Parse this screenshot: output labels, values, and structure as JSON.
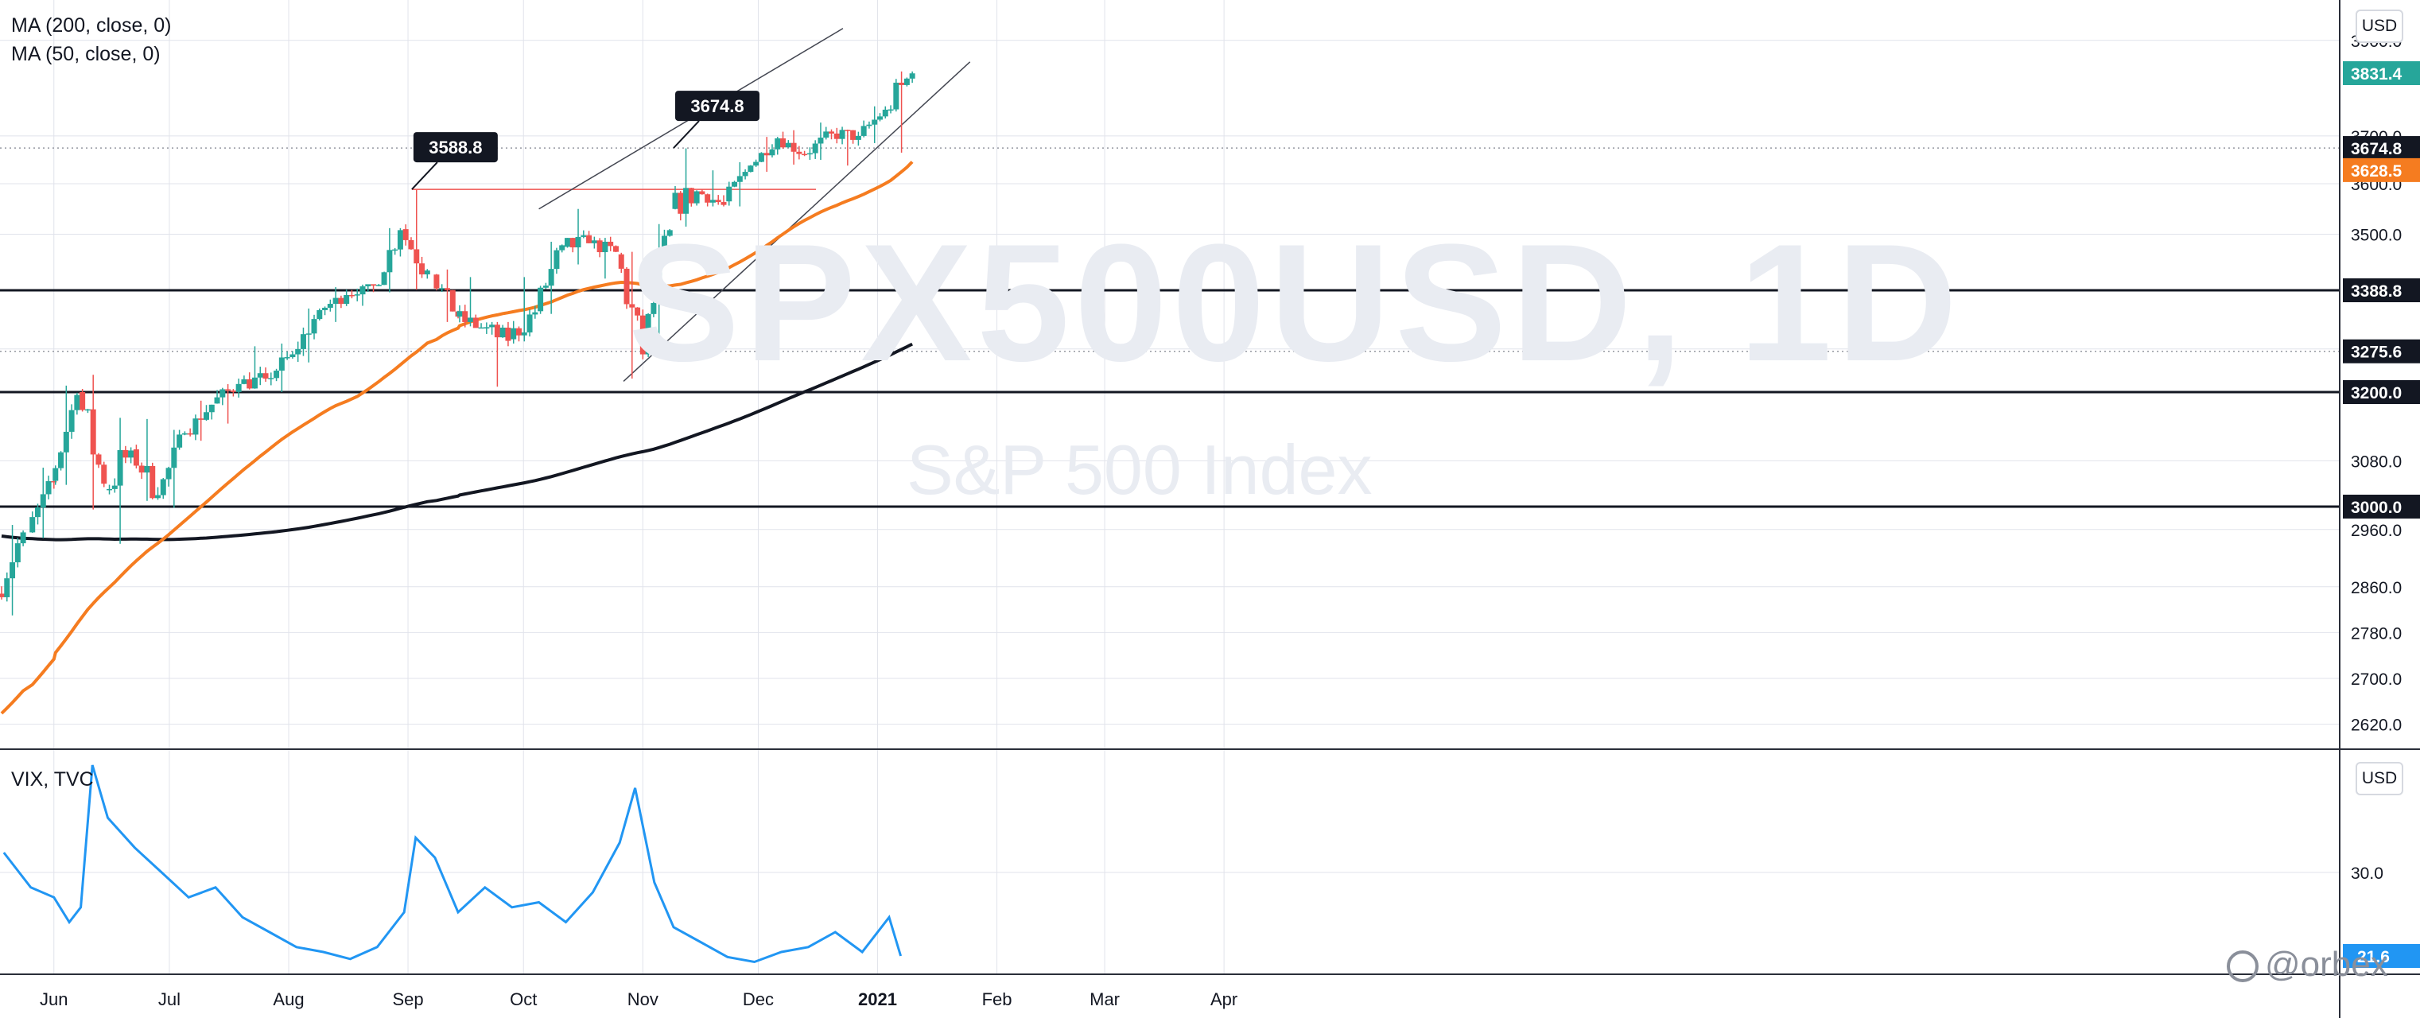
{
  "indicators": {
    "ma200_label": "MA (200, close, 0)",
    "ma50_label": "MA (50, close, 0)",
    "vix_label": "VIX, TVC"
  },
  "watermark": {
    "symbol": "SPX500USD, 1D",
    "name": "S&P 500 Index"
  },
  "currency": "USD",
  "brand": "@orbex",
  "colors": {
    "up": "#26a69a",
    "down": "#ef5350",
    "ma50": "#f57c20",
    "ma200": "#131722",
    "vix": "#2196f3",
    "grid": "#e1e3eb",
    "text": "#131722"
  },
  "chart_data": [
    {
      "type": "candlestick",
      "title": "",
      "x_ticks": [
        "Jun",
        "Jul",
        "Aug",
        "Sep",
        "Oct",
        "Nov",
        "Dec",
        "2021",
        "Feb",
        "Mar",
        "Apr"
      ],
      "y_ticks": [
        "2620.0",
        "2700.0",
        "2780.0",
        "2860.0",
        "2960.0",
        "3080.0",
        "3200.0",
        "3280.0",
        "3388.8",
        "3500.0",
        "3600.0",
        "3700.0",
        "3900.0"
      ],
      "ylim": [
        2620,
        3930
      ],
      "price_labels": [
        {
          "text": "3831.4",
          "value": 3831.4,
          "color": "#26a69a"
        },
        {
          "text": "3674.8",
          "value": 3674.8,
          "color": "#131722"
        },
        {
          "text": "3628.5",
          "value": 3628.5,
          "color": "#f57c20"
        },
        {
          "text": "3388.8",
          "value": 3388.8,
          "color": "#131722"
        },
        {
          "text": "3275.6",
          "value": 3275.6,
          "color": "#131722"
        },
        {
          "text": "3200.0",
          "value": 3200.0,
          "color": "#131722"
        },
        {
          "text": "3000.0",
          "value": 3000.0,
          "color": "#131722"
        }
      ],
      "horizontal_levels": [
        3388.8,
        3200.0,
        3000.0
      ],
      "callouts": [
        {
          "text": "3588.8",
          "date": "2020-09-02",
          "value": 3588.8
        },
        {
          "text": "3674.8",
          "date": "2020-11-09",
          "value": 3674.8
        }
      ],
      "resistance_line": {
        "value": 3588.8,
        "from": "2020-09-02",
        "to": "2020-12-16"
      },
      "channel": {
        "upper": [
          [
            "2020-10-05",
            3550
          ],
          [
            "2020-12-23",
            3925
          ]
        ],
        "lower": [
          [
            "2020-10-27",
            3220
          ],
          [
            "2021-01-25",
            3855
          ]
        ]
      },
      "series": [
        {
          "name": "SPX500USD",
          "ohlc_weekly": [
            [
              "2020-05-18",
              2848,
              2968,
              2810,
              2955
            ],
            [
              "2020-05-26",
              2955,
              3068,
              2945,
              3044
            ],
            [
              "2020-06-01",
              3045,
              3212,
              3038,
              3195
            ],
            [
              "2020-06-08",
              3200,
              3232,
              2995,
              3040
            ],
            [
              "2020-06-15",
              3030,
              3155,
              2935,
              3098
            ],
            [
              "2020-06-22",
              3100,
              3153,
              3010,
              3020
            ],
            [
              "2020-06-29",
              3020,
              3134,
              2998,
              3128
            ],
            [
              "2020-07-06",
              3128,
              3185,
              3115,
              3178
            ],
            [
              "2020-07-13",
              3180,
              3225,
              3145,
              3215
            ],
            [
              "2020-07-20",
              3215,
              3285,
              3195,
              3225
            ],
            [
              "2020-07-27",
              3225,
              3290,
              3200,
              3270
            ],
            [
              "2020-08-03",
              3270,
              3355,
              3255,
              3352
            ],
            [
              "2020-08-10",
              3352,
              3395,
              3330,
              3380
            ],
            [
              "2020-08-17",
              3380,
              3400,
              3360,
              3398
            ],
            [
              "2020-08-24",
              3398,
              3512,
              3385,
              3508
            ],
            [
              "2020-08-31",
              3510,
              3588,
              3390,
              3428
            ],
            [
              "2020-09-08",
              3420,
              3430,
              3330,
              3340
            ],
            [
              "2020-09-14",
              3340,
              3415,
              3320,
              3320
            ],
            [
              "2020-09-21",
              3318,
              3330,
              3210,
              3295
            ],
            [
              "2020-09-28",
              3298,
              3415,
              3290,
              3348
            ],
            [
              "2020-10-05",
              3350,
              3485,
              3345,
              3478
            ],
            [
              "2020-10-12",
              3475,
              3550,
              3440,
              3482
            ],
            [
              "2020-10-19",
              3482,
              3495,
              3412,
              3465
            ],
            [
              "2020-10-26",
              3460,
              3465,
              3225,
              3270
            ],
            [
              "2020-11-02",
              3270,
              3520,
              3265,
              3508
            ],
            [
              "2020-11-09",
              3550,
              3674,
              3515,
              3585
            ],
            [
              "2020-11-16",
              3585,
              3628,
              3555,
              3558
            ],
            [
              "2020-11-23",
              3565,
              3645,
              3555,
              3638
            ],
            [
              "2020-11-30",
              3638,
              3698,
              3625,
              3695
            ],
            [
              "2020-12-07",
              3695,
              3712,
              3640,
              3662
            ],
            [
              "2020-12-14",
              3662,
              3728,
              3650,
              3705
            ],
            [
              "2020-12-21",
              3705,
              3725,
              3638,
              3700
            ],
            [
              "2020-12-28",
              3700,
              3762,
              3685,
              3755
            ],
            [
              "2021-01-04",
              3755,
              3835,
              3665,
              3831
            ]
          ]
        },
        {
          "name": "MA (50, close, 0)",
          "last": 3628.5
        },
        {
          "name": "MA (200, close, 0)",
          "last": 3275.6
        }
      ]
    },
    {
      "type": "line",
      "title": "VIX, TVC",
      "y_ticks": [
        "30.0"
      ],
      "last_value_label": "21.6",
      "series": [
        {
          "name": "VIX",
          "points": [
            [
              "2020-05-19",
              32
            ],
            [
              "2020-05-26",
              28.5
            ],
            [
              "2020-06-01",
              27.5
            ],
            [
              "2020-06-05",
              25
            ],
            [
              "2020-06-08",
              26.5
            ],
            [
              "2020-06-11",
              40.8
            ],
            [
              "2020-06-15",
              35.5
            ],
            [
              "2020-06-22",
              32.5
            ],
            [
              "2020-06-29",
              30.0
            ],
            [
              "2020-07-06",
              27.5
            ],
            [
              "2020-07-13",
              28.5
            ],
            [
              "2020-07-20",
              25.5
            ],
            [
              "2020-07-27",
              24.0
            ],
            [
              "2020-08-03",
              22.5
            ],
            [
              "2020-08-10",
              22.0
            ],
            [
              "2020-08-17",
              21.3
            ],
            [
              "2020-08-24",
              22.5
            ],
            [
              "2020-08-31",
              26.0
            ],
            [
              "2020-09-03",
              33.5
            ],
            [
              "2020-09-08",
              31.5
            ],
            [
              "2020-09-14",
              26.0
            ],
            [
              "2020-09-21",
              28.5
            ],
            [
              "2020-09-28",
              26.5
            ],
            [
              "2020-10-05",
              27.0
            ],
            [
              "2020-10-12",
              25.0
            ],
            [
              "2020-10-19",
              28.0
            ],
            [
              "2020-10-26",
              33.0
            ],
            [
              "2020-10-30",
              38.5
            ],
            [
              "2020-11-04",
              29.0
            ],
            [
              "2020-11-09",
              24.5
            ],
            [
              "2020-11-16",
              23.0
            ],
            [
              "2020-11-23",
              21.5
            ],
            [
              "2020-11-30",
              21.0
            ],
            [
              "2020-12-07",
              22.0
            ],
            [
              "2020-12-14",
              22.5
            ],
            [
              "2020-12-21",
              24.0
            ],
            [
              "2020-12-28",
              22.0
            ],
            [
              "2021-01-04",
              25.5
            ],
            [
              "2021-01-07",
              21.6
            ]
          ]
        }
      ]
    }
  ]
}
